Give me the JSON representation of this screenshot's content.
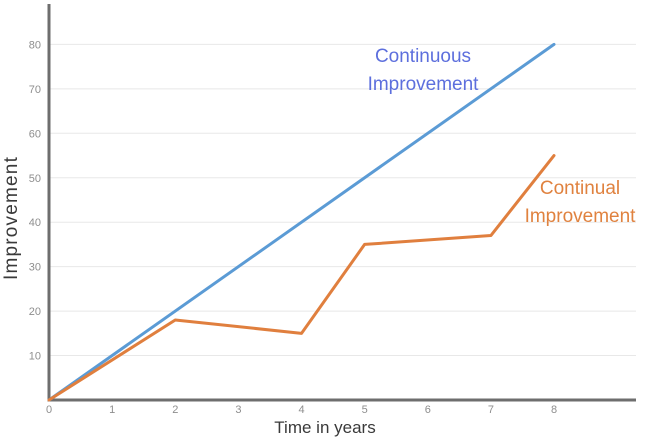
{
  "chart_data": {
    "type": "line",
    "title": "",
    "xlabel": "Time in years",
    "ylabel": "Improvement",
    "x_ticks": [
      0,
      1,
      2,
      3,
      4,
      5,
      6,
      7,
      8
    ],
    "y_ticks": [
      10,
      20,
      30,
      40,
      50,
      60,
      70,
      80
    ],
    "xlim": [
      0,
      9.3
    ],
    "ylim": [
      0,
      89
    ],
    "grid": "horizontal-only",
    "legend_position": "inline-annotations",
    "series": [
      {
        "name": "Continuous Improvement",
        "label_lines": [
          "Continuous",
          "Improvement"
        ],
        "line_color": "#5b9bd5",
        "label_color": "#5d6fdd",
        "x": [
          0,
          8
        ],
        "y": [
          0,
          80
        ]
      },
      {
        "name": "Continual Improvement",
        "label_lines": [
          "Continual",
          "Improvement"
        ],
        "line_color": "#e07f3e",
        "label_color": "#e0823f",
        "x": [
          0,
          2,
          4,
          5,
          7,
          8
        ],
        "y": [
          0,
          18,
          15,
          35,
          37,
          55
        ]
      }
    ],
    "colors": {
      "background": "#ffffff",
      "axis_line": "#6e6e6e",
      "gridline": "#e8e8e8",
      "tick_label": "#8e8e8e",
      "axis_title": "#3a3a3a"
    }
  }
}
